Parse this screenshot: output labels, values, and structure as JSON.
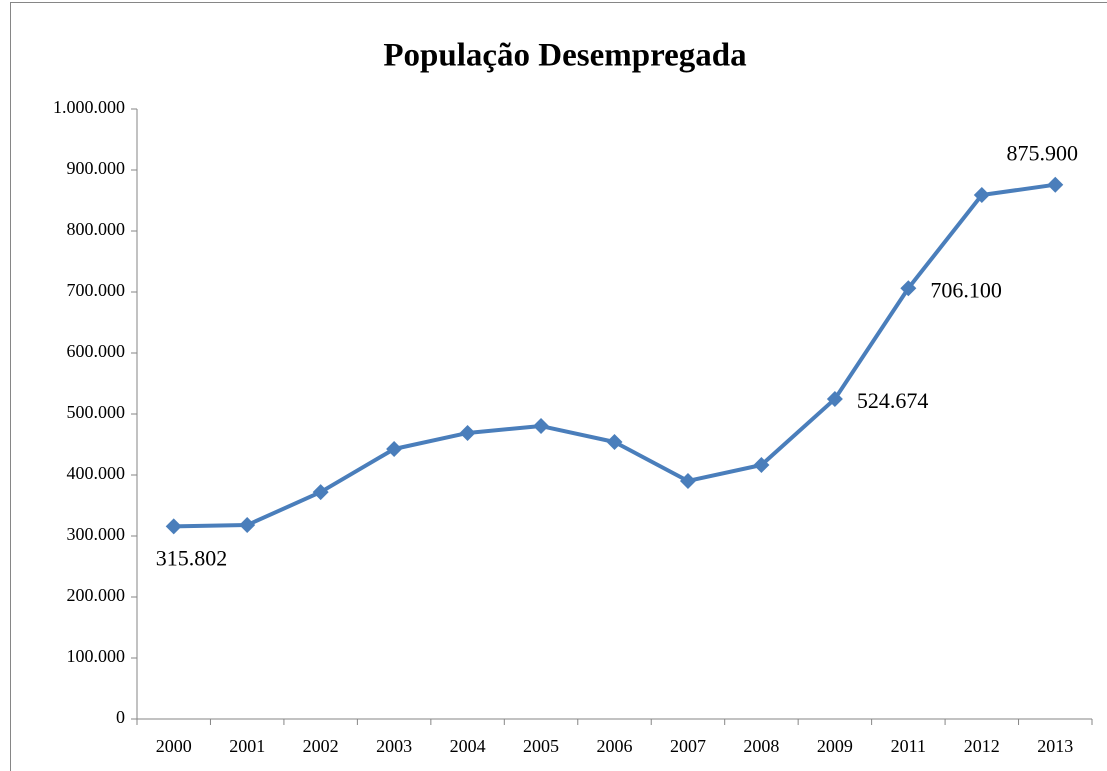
{
  "chart_data": {
    "type": "line",
    "title": "População Desempregada",
    "categories": [
      "2000",
      "2001",
      "2002",
      "2003",
      "2004",
      "2005",
      "2006",
      "2007",
      "2008",
      "2009",
      "2011",
      "2012",
      "2013"
    ],
    "series": [
      {
        "color": "#4a7ebb",
        "values": [
          315802,
          318000,
          372000,
          442600,
          468900,
          480300,
          454100,
          390200,
          416400,
          524674,
          706100,
          859000,
          875900
        ],
        "value_labels": [
          "315.802",
          null,
          null,
          null,
          null,
          null,
          null,
          null,
          null,
          "524.674",
          "706.100",
          null,
          "875.900"
        ]
      }
    ],
    "ylim": [
      0,
      1000000
    ],
    "yticks": [
      0,
      {
        "value": 100000,
        "label": "100.000"
      },
      {
        "value": 200000,
        "label": "200.000"
      },
      {
        "value": 300000,
        "label": "300.000"
      },
      {
        "value": 400000,
        "label": "400.000"
      },
      {
        "value": 500000,
        "label": "500.000"
      },
      {
        "value": 600000,
        "label": "600.000"
      },
      {
        "value": 700000,
        "label": "700.000"
      },
      {
        "value": 800000,
        "label": "800.000"
      },
      {
        "value": 900000,
        "label": "900.000"
      },
      {
        "value": 1000000,
        "label": "1.000.000"
      }
    ],
    "grid": false
  }
}
